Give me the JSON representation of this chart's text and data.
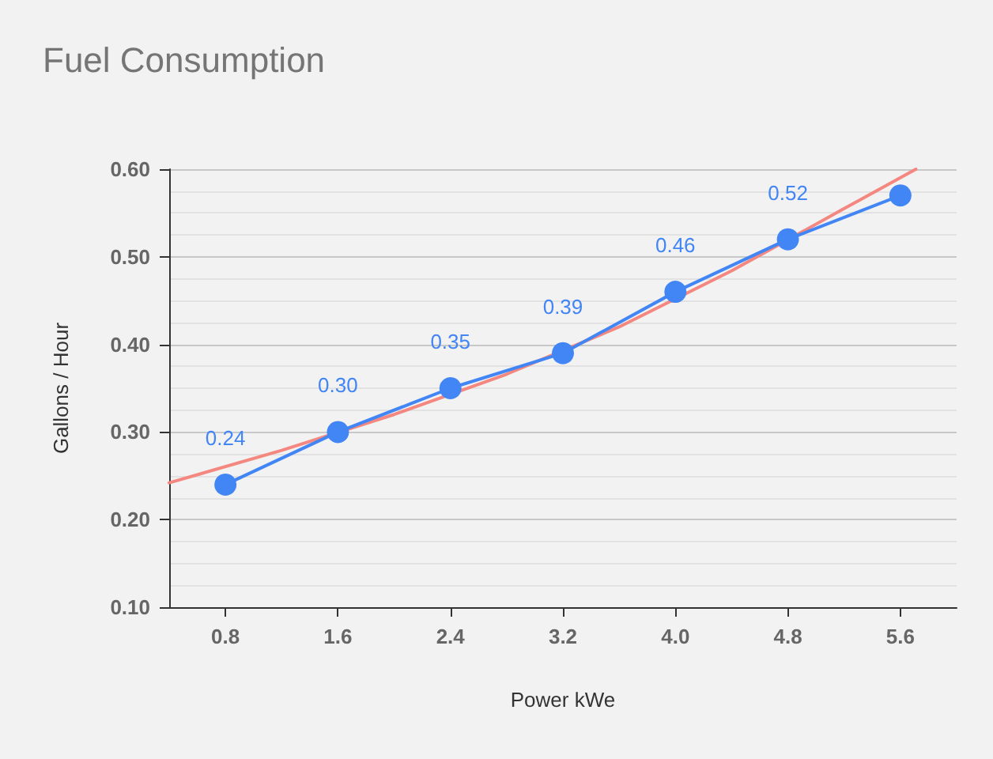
{
  "chart_data": {
    "type": "line",
    "title": "Fuel Consumption",
    "xlabel": "Power kWe",
    "ylabel": "Gallons / Hour",
    "x": [
      0.8,
      1.6,
      2.4,
      3.2,
      4.0,
      4.8,
      5.6
    ],
    "series": [
      {
        "color": "#f4877f",
        "marker": "none",
        "x": [
          0.4,
          1.2,
          2.0,
          2.8,
          3.6,
          4.4,
          5.2,
          5.71
        ],
        "values": [
          0.242,
          0.279,
          0.32,
          0.366,
          0.42,
          0.484,
          0.555,
          0.6
        ]
      },
      {
        "color": "#4285f4",
        "marker": "circle",
        "values": [
          0.24,
          0.3,
          0.35,
          0.39,
          0.46,
          0.52,
          0.57
        ],
        "value_labels": [
          "0.24",
          "0.30",
          "0.35",
          "0.39",
          "0.46",
          "0.52",
          null
        ]
      }
    ],
    "xlim": [
      0.4,
      6.0
    ],
    "xticks": [
      {
        "value": 0.8,
        "label": "0.8"
      },
      {
        "value": 1.6,
        "label": "1.6"
      },
      {
        "value": 2.4,
        "label": "2.4"
      },
      {
        "value": 3.2,
        "label": "3.2"
      },
      {
        "value": 4.0,
        "label": "4.0"
      },
      {
        "value": 4.8,
        "label": "4.8"
      },
      {
        "value": 5.6,
        "label": "5.6"
      }
    ],
    "ylim": [
      0.1,
      0.6
    ],
    "yticks": [
      {
        "value": 0.1,
        "label": "0.10"
      },
      {
        "value": 0.2,
        "label": "0.20"
      },
      {
        "value": 0.3,
        "label": "0.30"
      },
      {
        "value": 0.4,
        "label": "0.40"
      },
      {
        "value": 0.5,
        "label": "0.50"
      },
      {
        "value": 0.6,
        "label": "0.60"
      }
    ],
    "grid": "y"
  }
}
